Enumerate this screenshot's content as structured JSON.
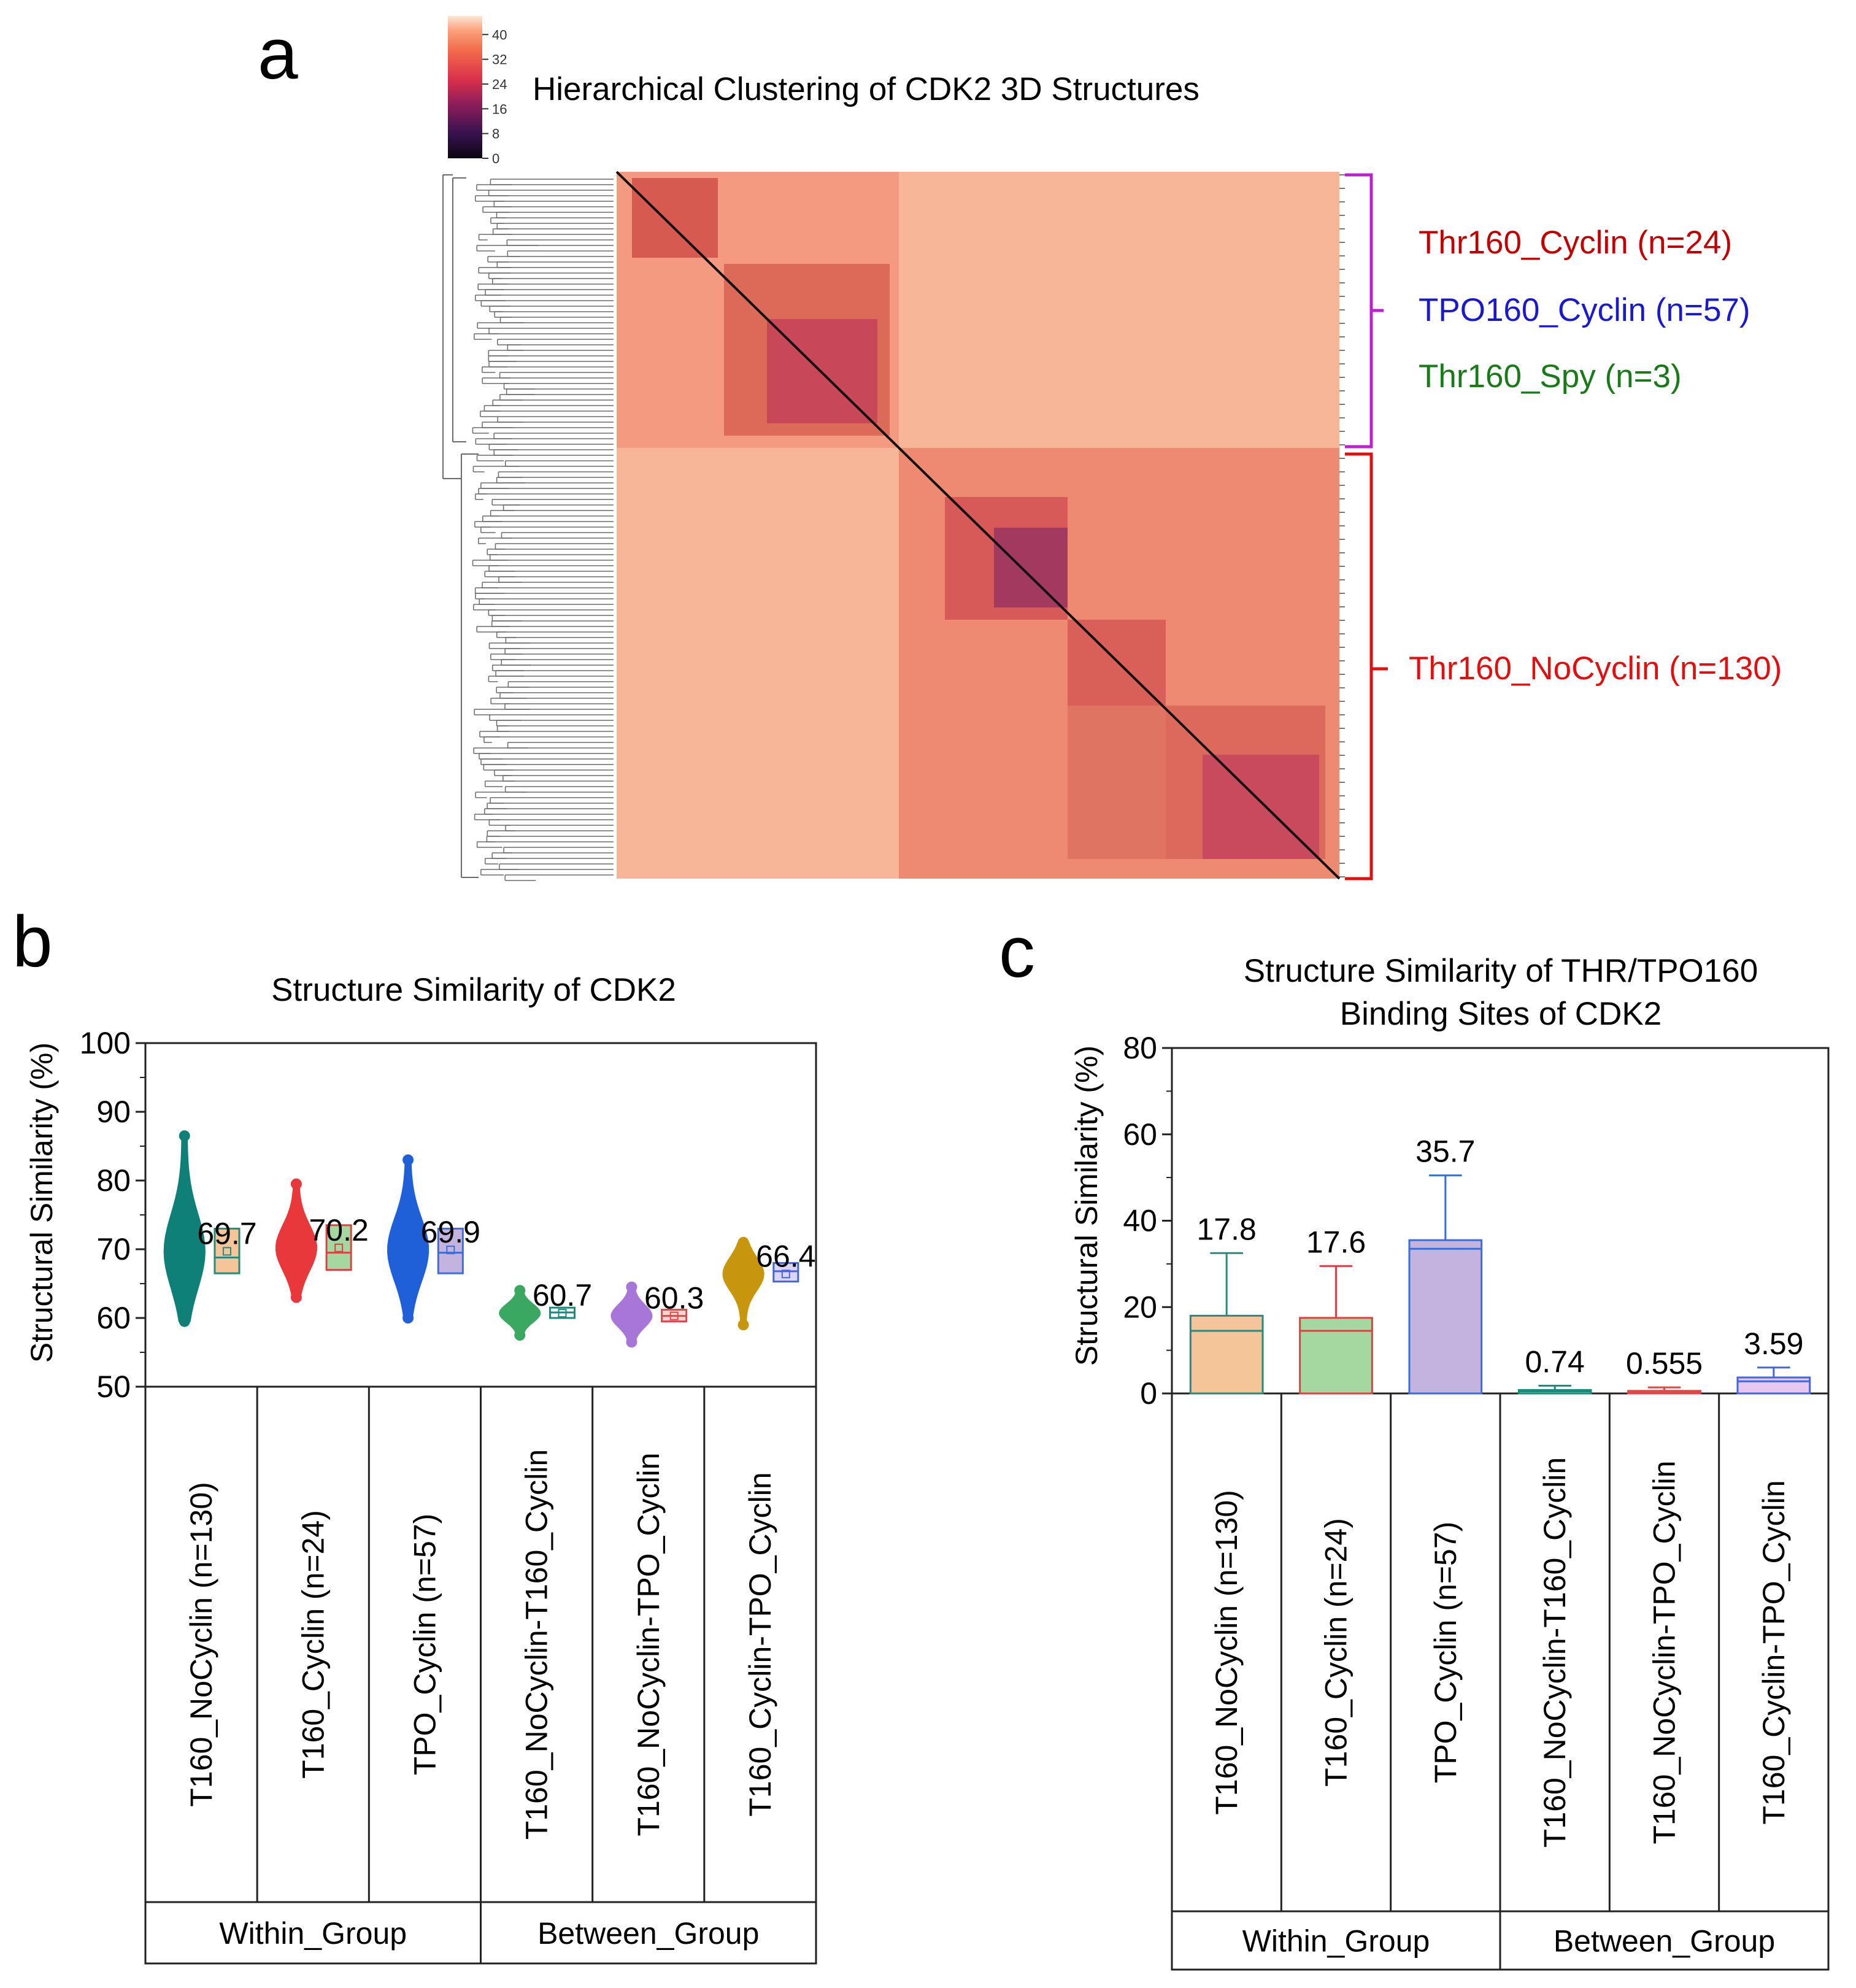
{
  "panel_letters": {
    "a": "a",
    "b": "b",
    "c": "c"
  },
  "chart_data": [
    {
      "panel": "a",
      "type": "heatmap",
      "title": "Hierarchical Clustering of CDK2 3D Structures",
      "colorbar": {
        "ticks": [
          0,
          8,
          16,
          24,
          32,
          40
        ],
        "range": [
          0,
          46
        ]
      },
      "groups": [
        {
          "label": "Thr160_Cyclin (n=24)",
          "color": "#c00000"
        },
        {
          "label": "TPO160_Cyclin (n=57)",
          "color": "#1a1acc"
        },
        {
          "label": "Thr160_Spy (n=3)",
          "color": "#1a7a1a"
        },
        {
          "label": "Thr160_NoCyclin (n=130)",
          "color": "#e01010"
        }
      ],
      "bracket_colors": {
        "upper": "#bb22cc",
        "lower": "#e01010"
      },
      "cluster_sizes": [
        84,
        130
      ]
    },
    {
      "panel": "b",
      "type": "box",
      "title": "Structure Similarity of CDK2",
      "ylabel": "Structural Similarity (%)",
      "ylim": [
        50,
        100
      ],
      "yticks": [
        50,
        60,
        70,
        80,
        90,
        100
      ],
      "categories": [
        "T160_NoCyclin (n=130)",
        "T160_Cyclin (n=24)",
        "TPO_Cyclin (n=57)",
        "T160_NoCyclin-T160_Cyclin",
        "T160_NoCyclin-TPO_Cyclin",
        "T160_Cyclin-TPO_Cyclin"
      ],
      "group_labels": [
        "Within_Group",
        "Between_Group"
      ],
      "group_spans": [
        3,
        3
      ],
      "series": [
        {
          "name": "T160_NoCyclin (n=130)",
          "mean": 69.7,
          "label": "69.7",
          "q1": 66.5,
          "median": 68.8,
          "q3": 73,
          "min": 59.5,
          "max": 86.5,
          "color": "#0e8078",
          "fill": "#f5c59a",
          "box_edge": "#2a8a7a"
        },
        {
          "name": "T160_Cyclin (n=24)",
          "mean": 70.2,
          "label": "70.2",
          "q1": 67,
          "median": 69.5,
          "q3": 73.5,
          "min": 63,
          "max": 79.5,
          "color": "#e8383c",
          "fill": "#a5d8a0",
          "box_edge": "#e04040"
        },
        {
          "name": "TPO_Cyclin (n=57)",
          "mean": 69.9,
          "label": "69.9",
          "q1": 66.5,
          "median": 69.5,
          "q3": 73,
          "min": 60,
          "max": 83,
          "color": "#1f5fd8",
          "fill": "#c3b4df",
          "box_edge": "#3b6ed8"
        },
        {
          "name": "T160_NoCyclin-T160_Cyclin",
          "mean": 60.7,
          "label": "60.7",
          "q1": 60,
          "median": 60.8,
          "q3": 61.5,
          "min": 57.5,
          "max": 64,
          "color": "#3aa860",
          "fill": "#ffffff",
          "box_edge": "#1a8a7a"
        },
        {
          "name": "T160_NoCyclin-TPO_Cyclin",
          "mean": 60.3,
          "label": "60.3",
          "q1": 59.5,
          "median": 60.3,
          "q3": 61.2,
          "min": 56.5,
          "max": 64.5,
          "color": "#a876d8",
          "fill": "#ffd6d6",
          "box_edge": "#e04848"
        },
        {
          "name": "T160_Cyclin-TPO_Cyclin",
          "mean": 66.4,
          "label": "66.4",
          "q1": 65.3,
          "median": 66.8,
          "q3": 68,
          "min": 59,
          "max": 71,
          "color": "#c8960c",
          "fill": "#dcd4fb",
          "box_edge": "#4466dd"
        }
      ]
    },
    {
      "panel": "c",
      "type": "box",
      "title": [
        "Structure Similarity of THR/TPO160",
        "Binding Sites of CDK2"
      ],
      "ylabel": "Structural Similarity (%)",
      "ylim": [
        0,
        80
      ],
      "yticks": [
        0,
        20,
        40,
        60,
        80
      ],
      "categories": [
        "T160_NoCyclin (n=130)",
        "T160_Cyclin (n=24)",
        "TPO_Cyclin (n=57)",
        "T160_NoCyclin-T160_Cyclin",
        "T160_NoCyclin-TPO_Cyclin",
        "T160_Cyclin-TPO_Cyclin"
      ],
      "group_labels": [
        "Within_Group",
        "Between_Group"
      ],
      "group_spans": [
        3,
        3
      ],
      "series": [
        {
          "name": "T160_NoCyclin (n=130)",
          "mean": 17.8,
          "label": "17.8",
          "q1": 0,
          "median": 14.5,
          "q3": 18,
          "whisker": 32.5,
          "fill": "#f5c59a",
          "edge": "#2a8a7a"
        },
        {
          "name": "T160_Cyclin (n=24)",
          "mean": 17.6,
          "label": "17.6",
          "q1": 0,
          "median": 14.5,
          "q3": 17.5,
          "whisker": 29.5,
          "fill": "#a5d8a0",
          "edge": "#e04040"
        },
        {
          "name": "TPO_Cyclin (n=57)",
          "mean": 35.7,
          "label": "35.7",
          "q1": 0,
          "median": 33.5,
          "q3": 35.5,
          "whisker": 50.5,
          "fill": "#c3b4df",
          "edge": "#3b6ed8"
        },
        {
          "name": "T160_NoCyclin-T160_Cyclin",
          "mean": 0.74,
          "label": "0.74",
          "q1": 0,
          "median": 0.5,
          "q3": 0.8,
          "whisker": 1.8,
          "fill": "#a8dcc8",
          "edge": "#1a8a7a"
        },
        {
          "name": "T160_NoCyclin-TPO_Cyclin",
          "mean": 0.555,
          "label": "0.555",
          "q1": 0,
          "median": 0.4,
          "q3": 0.6,
          "whisker": 1.4,
          "fill": "#ffc0c0",
          "edge": "#e04848"
        },
        {
          "name": "T160_Cyclin-TPO_Cyclin",
          "mean": 3.59,
          "label": "3.59",
          "q1": 0,
          "median": 2.8,
          "q3": 3.7,
          "whisker": 6,
          "fill": "#e8c8f0",
          "edge": "#4466dd"
        }
      ]
    }
  ]
}
